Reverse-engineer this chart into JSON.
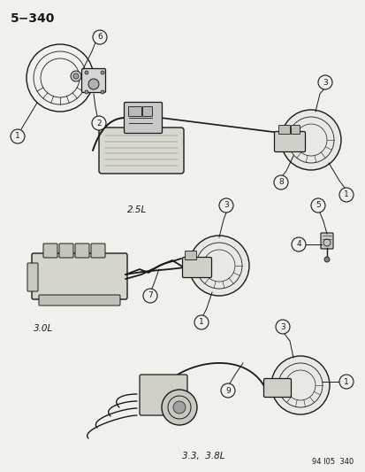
{
  "title": "5−340",
  "footer": "94 I05  340",
  "background": "#f0f0ec",
  "line_color": "#1a1a1a",
  "text_color": "#1a1a1a",
  "label_2_5L": "2.5L",
  "label_3_0L": "3.0L",
  "label_3_3L": "3.3,  3.8L",
  "fig_w": 4.14,
  "fig_h": 5.33,
  "dpi": 100
}
